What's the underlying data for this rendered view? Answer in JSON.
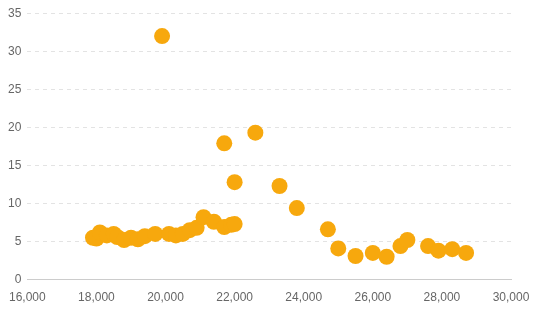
{
  "chart_data": {
    "type": "scatter",
    "x": [
      17900,
      18000,
      18100,
      18300,
      18500,
      18600,
      18800,
      19000,
      19200,
      19400,
      19700,
      19900,
      20100,
      20300,
      20500,
      20700,
      20900,
      21100,
      21400,
      21700,
      21700,
      21900,
      22000,
      22000,
      22600,
      23300,
      23800,
      24700,
      25000,
      25500,
      26000,
      26400,
      26800,
      27000,
      27600,
      27900,
      28300,
      28700
    ],
    "values": [
      5.5,
      5.4,
      6.2,
      5.8,
      6.0,
      5.6,
      5.2,
      5.5,
      5.3,
      5.7,
      6.0,
      32.0,
      6.0,
      5.8,
      6.0,
      6.5,
      6.8,
      8.2,
      7.6,
      17.9,
      6.9,
      7.2,
      7.3,
      12.8,
      19.3,
      12.3,
      9.4,
      6.6,
      4.1,
      3.1,
      3.5,
      3.0,
      4.4,
      5.2,
      4.4,
      3.8,
      4.0,
      3.5
    ],
    "color": "#f7a80d",
    "marker": "circle",
    "xlim": [
      16000,
      30000
    ],
    "xticks": [
      {
        "value": 16000,
        "label": "16,000"
      },
      {
        "value": 18000,
        "label": "18,000"
      },
      {
        "value": 20000,
        "label": "20,000"
      },
      {
        "value": 22000,
        "label": "22,000"
      },
      {
        "value": 24000,
        "label": "24,000"
      },
      {
        "value": 26000,
        "label": "26,000"
      },
      {
        "value": 28000,
        "label": "28,000"
      },
      {
        "value": 30000,
        "label": "30,000"
      }
    ],
    "ylim": [
      0,
      35
    ],
    "yticks": [
      0,
      5,
      10,
      15,
      20,
      25,
      30,
      35
    ],
    "grid": true
  }
}
